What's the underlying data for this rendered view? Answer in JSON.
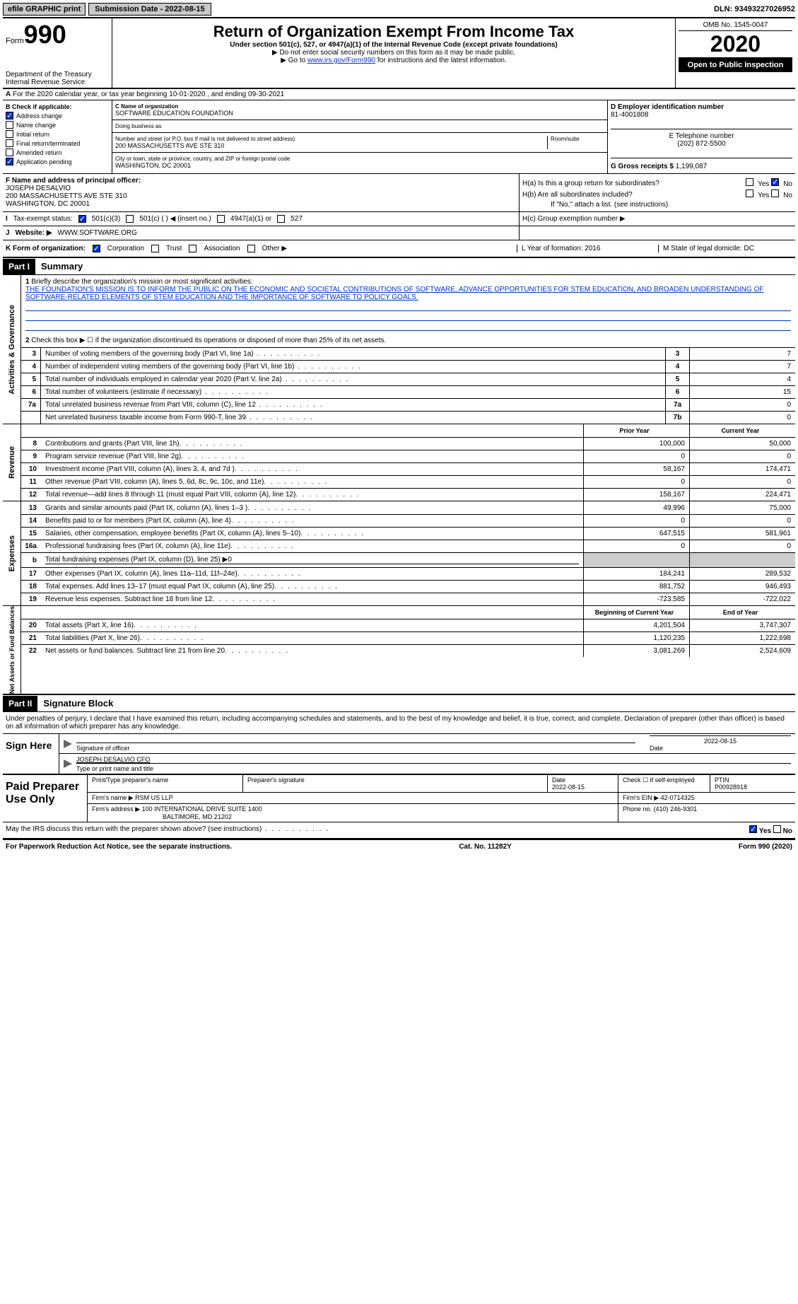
{
  "topbar": {
    "efile": "efile GRAPHIC print",
    "submission": "Submission Date - 2022-08-15",
    "dln": "DLN: 93493227026952"
  },
  "header": {
    "form_label": "Form",
    "form_number": "990",
    "dept1": "Department of the Treasury",
    "dept2": "Internal Revenue Service",
    "title": "Return of Organization Exempt From Income Tax",
    "subtitle": "Under section 501(c), 527, or 4947(a)(1) of the Internal Revenue Code (except private foundations)",
    "instr1": "Do not enter social security numbers on this form as it may be made public.",
    "instr2a": "Go to ",
    "instr2_link": "www.irs.gov/Form990",
    "instr2b": " for instructions and the latest information.",
    "omb": "OMB No. 1545-0047",
    "year": "2020",
    "open": "Open to Public Inspection"
  },
  "lineA": "For the 2020 calendar year, or tax year beginning 10-01-2020    , and ending 09-30-2021",
  "boxB": {
    "header": "B Check if applicable:",
    "address_change": "Address change",
    "name_change": "Name change",
    "initial_return": "Initial return",
    "final_return": "Final return/terminated",
    "amended": "Amended return",
    "app_pending": "Application pending"
  },
  "boxC": {
    "name_label": "C Name of organization",
    "name": "SOFTWARE EDUCATION FOUNDATION",
    "dba_label": "Doing business as",
    "street_label": "Number and street (or P.O. box if mail is not delivered to street address)",
    "room_label": "Room/suite",
    "street": "200 MASSACHUSETTS AVE STE 310",
    "city_label": "City or town, state or province, country, and ZIP or foreign postal code",
    "city": "WASHINGTON, DC  20001"
  },
  "boxD": {
    "ein_label": "D Employer identification number",
    "ein": "81-4001808",
    "phone_label": "E Telephone number",
    "phone": "(202) 872-5500",
    "gross_label": "G Gross receipts $",
    "gross": "1,199,087"
  },
  "boxF": {
    "label": "F Name and address of principal officer:",
    "name": "JOSEPH DESALVIO",
    "addr1": "200 MASSACHUSETTS AVE STE 310",
    "addr2": "WASHINGTON, DC  20001"
  },
  "boxH": {
    "ha": "H(a)  Is this a group return for subordinates?",
    "hb": "H(b)  Are all subordinates included?",
    "hb_note": "If \"No,\" attach a list. (see instructions)",
    "hc": "H(c)  Group exemption number ▶"
  },
  "lineI": {
    "label": "Tax-exempt status:",
    "opt1": "501(c)(3)",
    "opt2": "501(c) (  ) ◀ (insert no.)",
    "opt3": "4947(a)(1) or",
    "opt4": "527"
  },
  "lineJ": {
    "label": "Website: ▶",
    "value": "WWW.SOFTWARE.ORG"
  },
  "lineK": {
    "label": "K Form of organization:",
    "corp": "Corporation",
    "trust": "Trust",
    "assoc": "Association",
    "other": "Other ▶",
    "year_form": "L Year of formation: 2016",
    "state": "M State of legal domicile: DC"
  },
  "part1": {
    "header": "Part I",
    "title": "Summary",
    "q1": "Briefly describe the organization's mission or most significant activities:",
    "mission": "THE FOUNDATION'S MISSION IS TO INFORM THE PUBLIC ON THE ECONOMIC AND SOCIETAL CONTRIBUTIONS OF SOFTWARE, ADVANCE OPPORTUNITIES FOR STEM EDUCATION, AND BROADEN UNDERSTANDING OF SOFTWARE-RELATED ELEMENTS OF STEM EDUCATION AND THE IMPORTANCE OF SOFTWARE TO POLICY GOALS.",
    "q2": "Check this box ▶ ☐ if the organization discontinued its operations or disposed of more than 25% of its net assets.",
    "rows": [
      {
        "n": "3",
        "label": "Number of voting members of the governing body (Part VI, line 1a)",
        "box": "3",
        "val": "7"
      },
      {
        "n": "4",
        "label": "Number of independent voting members of the governing body (Part VI, line 1b)",
        "box": "4",
        "val": "7"
      },
      {
        "n": "5",
        "label": "Total number of individuals employed in calendar year 2020 (Part V, line 2a)",
        "box": "5",
        "val": "4"
      },
      {
        "n": "6",
        "label": "Total number of volunteers (estimate if necessary)",
        "box": "6",
        "val": "15"
      },
      {
        "n": "7a",
        "label": "Total unrelated business revenue from Part VIII, column (C), line 12",
        "box": "7a",
        "val": "0"
      },
      {
        "n": "",
        "label": "Net unrelated business taxable income from Form 990-T, line 39",
        "box": "7b",
        "val": "0"
      }
    ],
    "prior_hdr": "Prior Year",
    "curr_hdr": "Current Year",
    "revenue_rows": [
      {
        "n": "8",
        "label": "Contributions and grants (Part VIII, line 1h)",
        "prior": "100,000",
        "curr": "50,000"
      },
      {
        "n": "9",
        "label": "Program service revenue (Part VIII, line 2g)",
        "prior": "0",
        "curr": "0"
      },
      {
        "n": "10",
        "label": "Investment income (Part VIII, column (A), lines 3, 4, and 7d )",
        "prior": "58,167",
        "curr": "174,471"
      },
      {
        "n": "11",
        "label": "Other revenue (Part VIII, column (A), lines 5, 6d, 8c, 9c, 10c, and 11e)",
        "prior": "0",
        "curr": "0"
      },
      {
        "n": "12",
        "label": "Total revenue—add lines 8 through 11 (must equal Part VIII, column (A), line 12)",
        "prior": "158,167",
        "curr": "224,471"
      }
    ],
    "expense_rows": [
      {
        "n": "13",
        "label": "Grants and similar amounts paid (Part IX, column (A), lines 1–3 )",
        "prior": "49,996",
        "curr": "75,000"
      },
      {
        "n": "14",
        "label": "Benefits paid to or for members (Part IX, column (A), line 4)",
        "prior": "0",
        "curr": "0"
      },
      {
        "n": "15",
        "label": "Salaries, other compensation, employee benefits (Part IX, column (A), lines 5–10)",
        "prior": "647,515",
        "curr": "581,961"
      },
      {
        "n": "16a",
        "label": "Professional fundraising fees (Part IX, column (A), line 11e)",
        "prior": "0",
        "curr": "0"
      },
      {
        "n": "b",
        "label": "Total fundraising expenses (Part IX, column (D), line 25) ▶0",
        "prior": "",
        "curr": ""
      },
      {
        "n": "17",
        "label": "Other expenses (Part IX, column (A), lines 11a–11d, 11f–24e)",
        "prior": "184,241",
        "curr": "289,532"
      },
      {
        "n": "18",
        "label": "Total expenses. Add lines 13–17 (must equal Part IX, column (A), line 25)",
        "prior": "881,752",
        "curr": "946,493"
      },
      {
        "n": "19",
        "label": "Revenue less expenses. Subtract line 18 from line 12",
        "prior": "-723,585",
        "curr": "-722,022"
      }
    ],
    "begin_hdr": "Beginning of Current Year",
    "end_hdr": "End of Year",
    "netasset_rows": [
      {
        "n": "20",
        "label": "Total assets (Part X, line 16)",
        "prior": "4,201,504",
        "curr": "3,747,307"
      },
      {
        "n": "21",
        "label": "Total liabilities (Part X, line 26)",
        "prior": "1,120,235",
        "curr": "1,222,698"
      },
      {
        "n": "22",
        "label": "Net assets or fund balances. Subtract line 21 from line 20",
        "prior": "3,081,269",
        "curr": "2,524,609"
      }
    ]
  },
  "part2": {
    "header": "Part II",
    "title": "Signature Block",
    "decl": "Under penalties of perjury, I declare that I have examined this return, including accompanying schedules and statements, and to the best of my knowledge and belief, it is true, correct, and complete. Declaration of preparer (other than officer) is based on all information of which preparer has any knowledge.",
    "sign_here": "Sign Here",
    "sig_officer": "Signature of officer",
    "sig_date": "2022-08-15",
    "sig_date_lbl": "Date",
    "officer_name": "JOSEPH DESALVIO CFO",
    "officer_lbl": "Type or print name and title",
    "paid": "Paid Preparer Use Only",
    "prep_name_lbl": "Print/Type preparer's name",
    "prep_sig_lbl": "Preparer's signature",
    "prep_date_lbl": "Date",
    "prep_date": "2022-08-15",
    "self_emp": "Check ☐ if self-employed",
    "ptin_lbl": "PTIN",
    "ptin": "P00928918",
    "firm_name_lbl": "Firm's name   ▶",
    "firm_name": "RSM US LLP",
    "firm_ein_lbl": "Firm's EIN ▶",
    "firm_ein": "42-0714325",
    "firm_addr_lbl": "Firm's address ▶",
    "firm_addr1": "100 INTERNATIONAL DRIVE SUITE 1400",
    "firm_addr2": "BALTIMORE, MD  21202",
    "firm_phone_lbl": "Phone no.",
    "firm_phone": "(410) 246-9301",
    "discuss": "May the IRS discuss this return with the preparer shown above? (see instructions)"
  },
  "footer": {
    "pra": "For Paperwork Reduction Act Notice, see the separate instructions.",
    "cat": "Cat. No. 11282Y",
    "form": "Form 990 (2020)"
  },
  "yn": {
    "yes": "Yes",
    "no": "No"
  }
}
